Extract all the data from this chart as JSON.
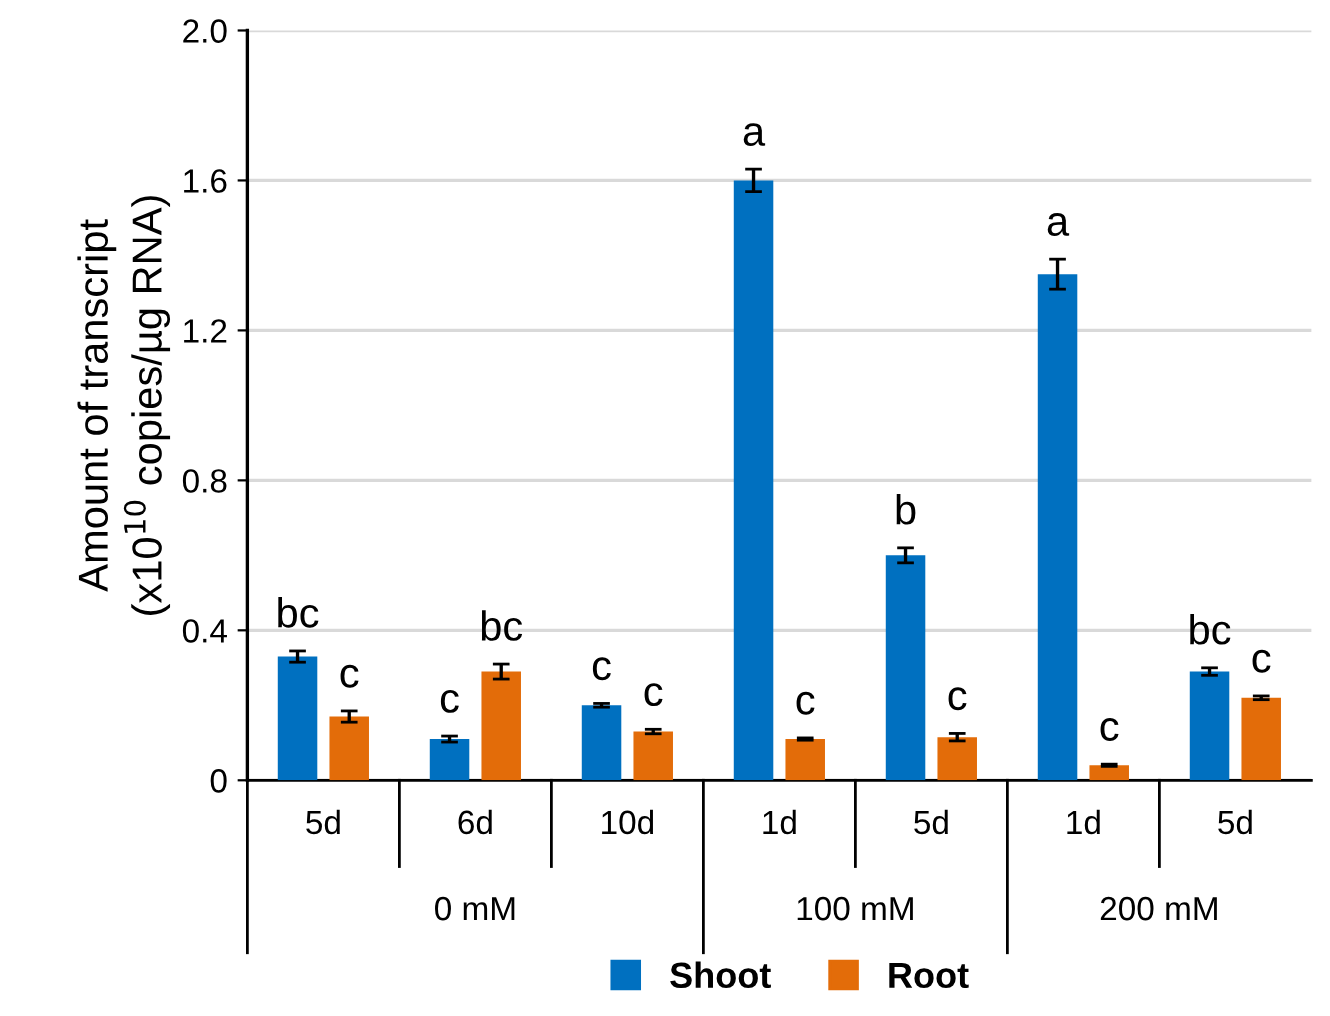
{
  "chart_data": {
    "type": "bar",
    "ylabel": "Amount of transcript\n(x10$^{10}$ copies/µg RNA)",
    "categories": [
      "5d",
      "6d",
      "10d",
      "1d",
      "5d",
      "1d",
      "5d"
    ],
    "annotations": [
      "0 mM",
      "100 mM",
      "200 mM"
    ],
    "series": [
      {
        "name": "Shoot",
        "color": "#0070c0",
        "values": [
          0.33,
          0.11,
          0.2,
          1.6,
          0.6,
          1.35,
          0.29
        ],
        "errors": [
          0.015,
          0.008,
          0.005,
          0.03,
          0.02,
          0.04,
          0.01
        ],
        "value_labels": [
          "bc",
          "c",
          "c",
          "a",
          "b",
          "a",
          "bc"
        ]
      },
      {
        "name": "Root",
        "color": "#e36c09",
        "values": [
          0.17,
          0.29,
          0.13,
          0.11,
          0.115,
          0.04,
          0.22
        ],
        "errors": [
          0.015,
          0.02,
          0.006,
          0.003,
          0.01,
          0.003,
          0.005
        ],
        "value_labels": [
          "c",
          "bc",
          "c",
          "c",
          "c",
          "c",
          "c"
        ]
      }
    ],
    "ylim": [
      0,
      2
    ],
    "yticks": [
      0,
      0.4,
      0.8,
      1.2,
      1.6,
      {
        "value": 2,
        "label": "2.0"
      }
    ],
    "grid": "y",
    "legend": "bottom"
  }
}
